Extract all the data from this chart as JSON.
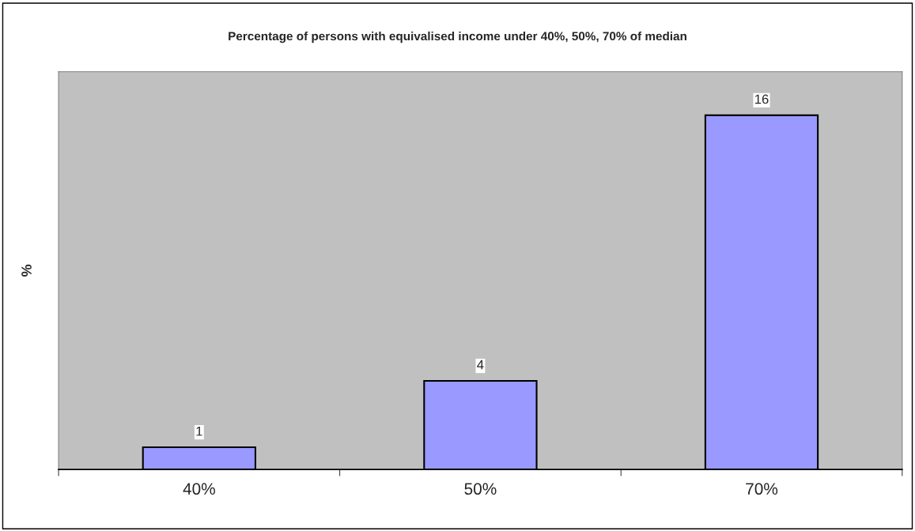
{
  "chart_data": {
    "type": "bar",
    "title": "Percentage of persons with equivalised income under 40%, 50%, 70% of median",
    "ylabel": "%",
    "categories": [
      "40%",
      "50%",
      "70%"
    ],
    "values": [
      1,
      4,
      16
    ],
    "color": "#9999ff",
    "data_labels": true,
    "grid": false,
    "legend": false
  }
}
